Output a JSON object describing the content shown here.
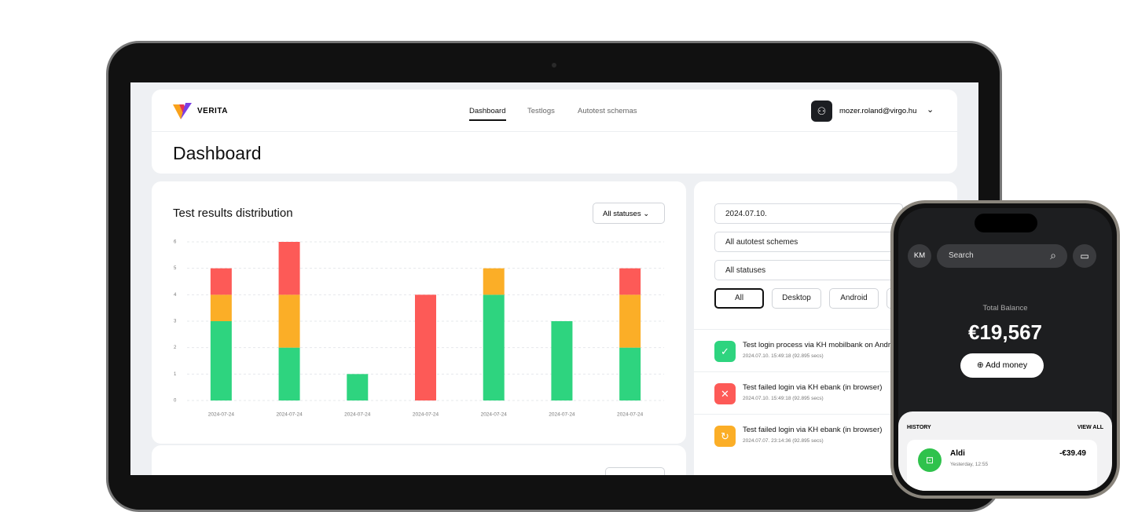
{
  "header": {
    "brand": "VERITA",
    "nav": [
      "Dashboard",
      "Testlogs",
      "Autotest schemas"
    ],
    "user": "mozer.roland@virgo.hu",
    "page_title": "Dashboard"
  },
  "chart_data": {
    "type": "bar",
    "stacked": true,
    "title": "Test results distribution",
    "filter": "All statuses",
    "categories": [
      "2024-07-24",
      "2024-07-24",
      "2024-07-24",
      "2024-07-24",
      "2024-07-24",
      "2024-07-24",
      "2024-07-24"
    ],
    "series": [
      {
        "color": "#2ed47f",
        "values": [
          3,
          2,
          1,
          0,
          4,
          3,
          2
        ]
      },
      {
        "color": "#fbae27",
        "values": [
          1,
          2,
          0,
          0,
          1,
          0,
          2
        ]
      },
      {
        "color": "#fd5a57",
        "values": [
          1,
          2,
          0,
          4,
          0,
          0,
          1
        ]
      }
    ],
    "ylim": [
      0,
      6
    ],
    "yticks": [
      0,
      1,
      2,
      3,
      4,
      5,
      6
    ],
    "grid": true
  },
  "filters": {
    "date": "2024.07.10.",
    "scheme": "All autotest schemes",
    "status": "All statuses",
    "platforms": [
      "All",
      "Desktop",
      "Android"
    ]
  },
  "testlogs": [
    {
      "title": "Test login process via KH mobilbank on Android",
      "meta": "2024.07.10. 15:49:18 (92.895 secs)",
      "color": "#2ed47f",
      "icon": "✓"
    },
    {
      "title": "Test failed login via KH ebank (in browser)",
      "meta": "2024.07.10. 15:49:18 (92.895 secs)",
      "color": "#fd5a57",
      "icon": "✕"
    },
    {
      "title": "Test failed login via KH ebank (in browser)",
      "meta": "2024.07.07. 23:14:36 (92.895 secs)",
      "color": "#fbae27",
      "icon": "↻"
    }
  ],
  "phone": {
    "initials": "KM",
    "search": "Search",
    "balance_label": "Total Balance",
    "balance": "€19,567",
    "add_money": "Add money",
    "history": "HISTORY",
    "view_all": "VIEW ALL",
    "item": {
      "name": "Aldi",
      "time": "Yesterday, 12:55",
      "amount": "-€39.49"
    }
  }
}
